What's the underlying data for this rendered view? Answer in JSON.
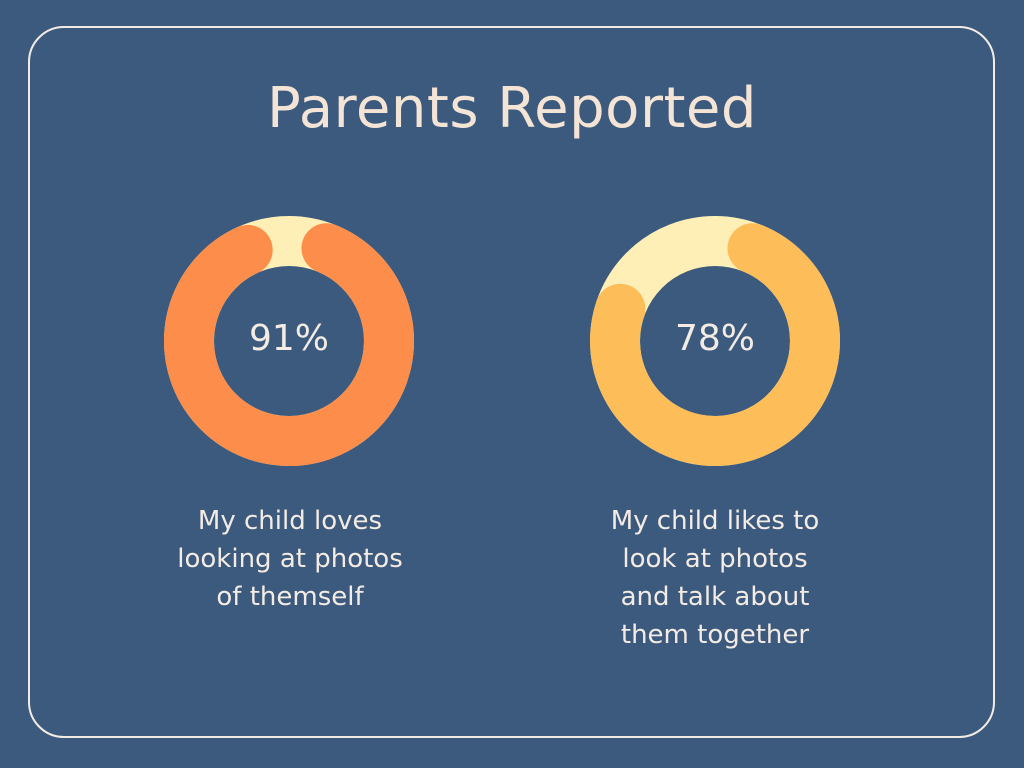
{
  "chart_data": [
    {
      "type": "pie",
      "title": "Parents Reported",
      "value": 91,
      "label": "91%",
      "caption": [
        "My child loves",
        "looking at photos",
        "of themself"
      ],
      "colors": {
        "filled": "#fd8d4a",
        "remainder": "#fdefb6"
      }
    },
    {
      "type": "pie",
      "title": "Parents Reported",
      "value": 78,
      "label": "78%",
      "caption": [
        "My child likes to",
        "look at photos",
        "and talk about",
        "them together"
      ],
      "colors": {
        "filled": "#fdbd58",
        "remainder": "#fdefb6"
      }
    }
  ],
  "header": {
    "title": "Parents Reported"
  }
}
